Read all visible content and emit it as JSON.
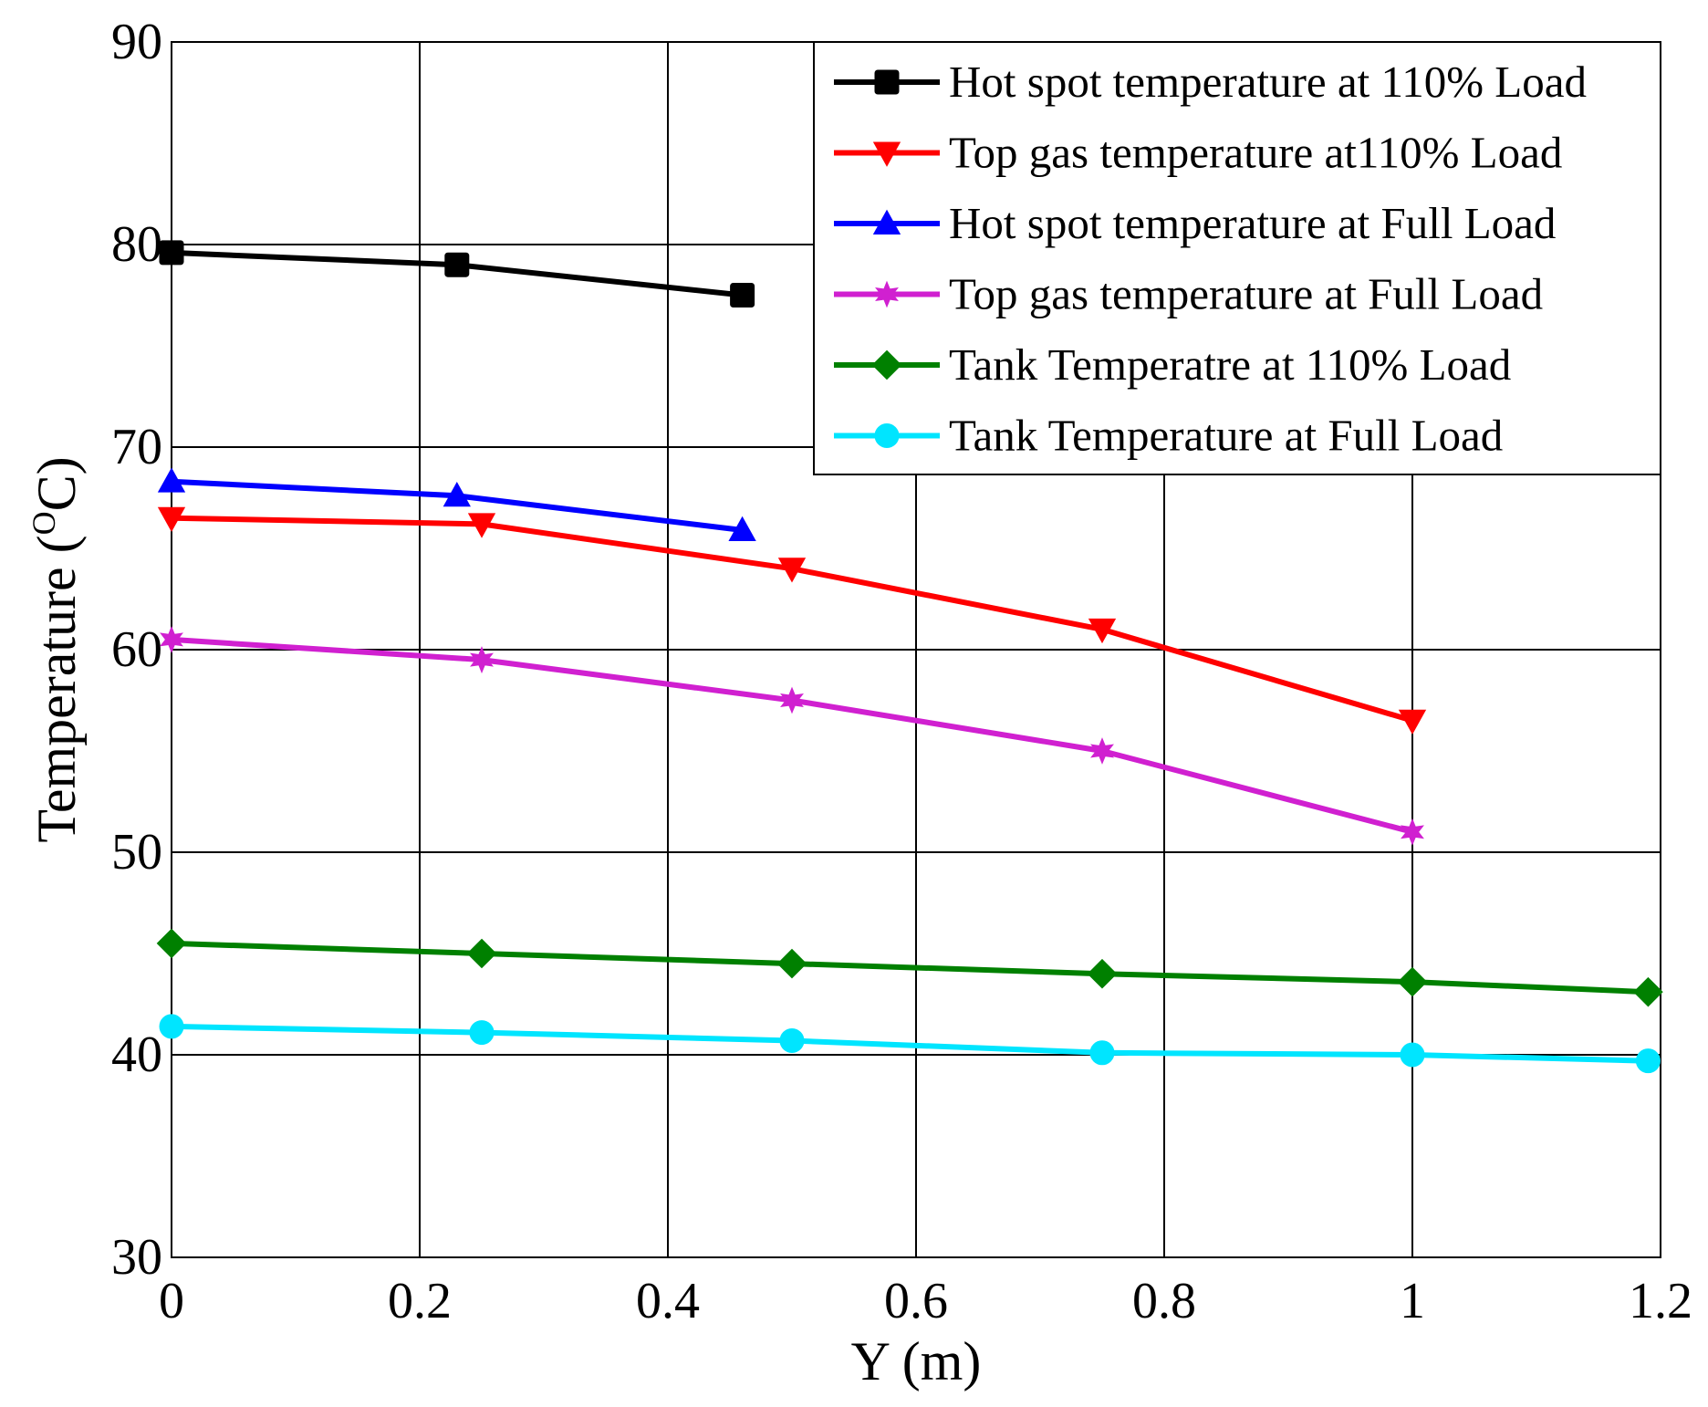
{
  "chart_data": {
    "type": "line",
    "title": "",
    "xlabel": "Y (m)",
    "ylabel": {
      "text": "Temperature (",
      "unit_sup": "O",
      "unit": "C",
      "close": ")"
    },
    "xlim": [
      0,
      1.2
    ],
    "ylim": [
      30,
      90
    ],
    "xticks": [
      0,
      0.2,
      0.4,
      0.6,
      0.8,
      1,
      1.2
    ],
    "xtick_labels": [
      "0",
      "0.2",
      "0.4",
      "0.6",
      "0.8",
      "1",
      "1.2"
    ],
    "yticks": [
      30,
      40,
      50,
      60,
      70,
      80,
      90
    ],
    "ytick_labels": [
      "30",
      "40",
      "50",
      "60",
      "70",
      "80",
      "90"
    ],
    "grid": true,
    "legend_position": "top-right",
    "series": [
      {
        "name": "Hot spot temperature at 110% Load",
        "color": "#000000",
        "marker": "square",
        "x": [
          0,
          0.23,
          0.46
        ],
        "y": [
          79.6,
          79.0,
          77.5
        ]
      },
      {
        "name": "Top gas temperature at110% Load",
        "color": "#ff0000",
        "marker": "triangle-down",
        "x": [
          0,
          0.25,
          0.5,
          0.75,
          1.0
        ],
        "y": [
          66.5,
          66.2,
          64.0,
          61.0,
          56.5
        ]
      },
      {
        "name": "Hot spot temperature at Full Load",
        "color": "#0000ff",
        "marker": "triangle-up",
        "x": [
          0,
          0.23,
          0.46
        ],
        "y": [
          68.3,
          67.6,
          65.9
        ]
      },
      {
        "name": "Top gas temperature at Full Load",
        "color": "#d020d0",
        "marker": "star",
        "x": [
          0,
          0.25,
          0.5,
          0.75,
          1.0
        ],
        "y": [
          60.5,
          59.5,
          57.5,
          55.0,
          51.0
        ]
      },
      {
        "name": "Tank Temperatre at 110% Load",
        "color": "#008000",
        "marker": "diamond",
        "x": [
          0,
          0.25,
          0.5,
          0.75,
          1.0,
          1.19
        ],
        "y": [
          45.5,
          45.0,
          44.5,
          44.0,
          43.6,
          43.1
        ]
      },
      {
        "name": "Tank Temperature at Full Load",
        "color": "#00e5ff",
        "marker": "circle",
        "x": [
          0,
          0.25,
          0.5,
          0.75,
          1.0,
          1.19
        ],
        "y": [
          41.4,
          41.1,
          40.7,
          40.1,
          40.0,
          39.7
        ]
      }
    ]
  }
}
